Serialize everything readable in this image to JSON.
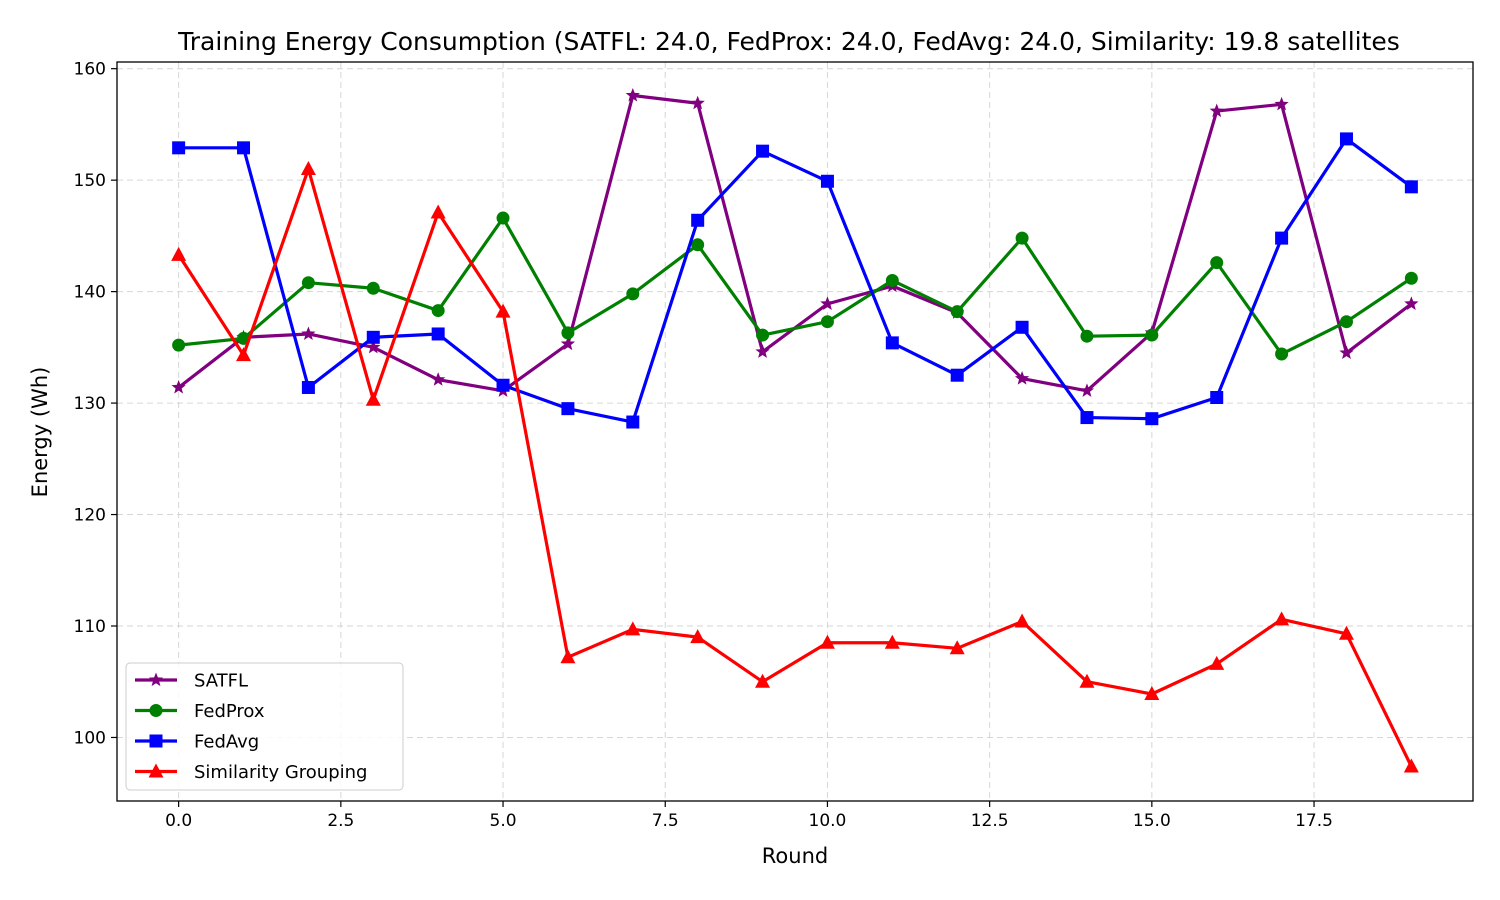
{
  "chart_data": {
    "type": "line",
    "title": "Training Energy Consumption (SATFL: 24.0, FedProx: 24.0, FedAvg: 24.0, Similarity: 19.8 satellites",
    "xlabel": "Round",
    "ylabel": "Energy (Wh)",
    "xlim": [
      -0.95,
      19.95
    ],
    "ylim": [
      94.3,
      160.6
    ],
    "xticks": [
      0.0,
      2.5,
      5.0,
      7.5,
      10.0,
      12.5,
      15.0,
      17.5
    ],
    "xtick_labels": [
      "0.0",
      "2.5",
      "5.0",
      "7.5",
      "10.0",
      "12.5",
      "15.0",
      "17.5"
    ],
    "yticks": [
      100,
      110,
      120,
      130,
      140,
      150,
      160
    ],
    "ytick_labels": [
      "100",
      "110",
      "120",
      "130",
      "140",
      "150",
      "160"
    ],
    "grid": true,
    "legend_position": "lower-left",
    "x": [
      0,
      1,
      2,
      3,
      4,
      5,
      6,
      7,
      8,
      9,
      10,
      11,
      12,
      13,
      14,
      15,
      16,
      17,
      18,
      19
    ],
    "series": [
      {
        "name": "SATFL",
        "color": "#800080",
        "marker": "star",
        "values": [
          131.4,
          135.9,
          136.2,
          135.0,
          132.1,
          131.1,
          135.3,
          157.6,
          156.9,
          134.6,
          138.9,
          140.5,
          138.1,
          132.2,
          131.1,
          136.3,
          156.2,
          156.8,
          134.5,
          138.9
        ]
      },
      {
        "name": "FedProx",
        "color": "#008000",
        "marker": "circle",
        "values": [
          135.2,
          135.8,
          140.8,
          140.3,
          138.3,
          146.6,
          136.3,
          139.8,
          144.2,
          136.1,
          137.3,
          141.0,
          138.2,
          144.8,
          136.0,
          136.1,
          142.6,
          134.4,
          137.3,
          141.2
        ]
      },
      {
        "name": "FedAvg",
        "color": "#0000ff",
        "marker": "square",
        "values": [
          152.9,
          152.9,
          131.4,
          135.9,
          136.2,
          131.6,
          129.5,
          128.3,
          146.4,
          152.6,
          149.9,
          135.4,
          132.5,
          136.8,
          128.7,
          128.6,
          130.5,
          144.8,
          153.7,
          149.4
        ]
      },
      {
        "name": "Similarity Grouping",
        "color": "#ff0000",
        "marker": "triangle",
        "values": [
          143.3,
          134.3,
          151.0,
          130.3,
          147.1,
          138.2,
          107.2,
          109.7,
          109.0,
          105.0,
          108.5,
          108.5,
          108.0,
          110.4,
          105.0,
          103.9,
          106.6,
          110.6,
          109.3,
          97.4
        ]
      }
    ]
  }
}
